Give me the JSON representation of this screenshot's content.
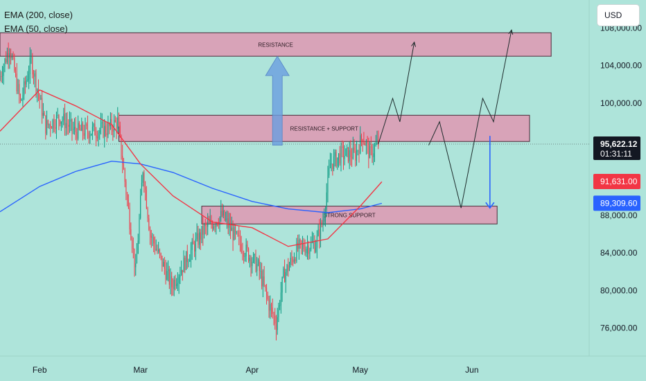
{
  "chart_data": {
    "type": "candlestick",
    "symbol_currency": "USD",
    "indicators": [
      {
        "name": "EMA (200, close)",
        "color": "#2962ff"
      },
      {
        "name": "EMA (50, close)",
        "color": "#f23645"
      }
    ],
    "y_axis": {
      "range": [
        73000,
        111000
      ],
      "ticks": [
        "108,000.00",
        "104,000.00",
        "100,000.00",
        "88,000.00",
        "84,000.00",
        "80,000.00",
        "76,000.00"
      ],
      "tick_values": [
        108000,
        104000,
        100000,
        88000,
        84000,
        80000,
        76000
      ]
    },
    "x_axis": {
      "range": [
        "2025-01-21",
        "2025-06-12"
      ],
      "labels": [
        "Feb",
        "Mar",
        "Apr",
        "May",
        "Jun"
      ],
      "label_dates": [
        "2025-02-01",
        "2025-03-01",
        "2025-04-01",
        "2025-05-01",
        "2025-06-01"
      ]
    },
    "price_labels": [
      {
        "text": "95,622.12",
        "sub": "01:31:11",
        "value": 95622.12,
        "color": "#131722"
      },
      {
        "text": "91,631.00",
        "value": 91631.0,
        "color": "#f23645"
      },
      {
        "text": "89,309.60",
        "value": 89309.6,
        "color": "#2962ff"
      }
    ],
    "zones": [
      {
        "label": "RESISTANCE",
        "low": 105000,
        "high": 107500,
        "from": "2025-01-21",
        "to": "2025-06-23"
      },
      {
        "label": "RESISTANCE + SUPPORT",
        "low": 95900,
        "high": 98700,
        "from": "2025-02-23",
        "to": "2025-06-17"
      },
      {
        "label": "STRONG SUPPORT",
        "low": 87100,
        "high": 89000,
        "from": "2025-03-18",
        "to": "2025-06-08"
      }
    ],
    "ema200": [
      {
        "date": "2025-01-21",
        "value": 88400
      },
      {
        "date": "2025-02-01",
        "value": 91100
      },
      {
        "date": "2025-02-11",
        "value": 92700
      },
      {
        "date": "2025-02-21",
        "value": 93800
      },
      {
        "date": "2025-03-01",
        "value": 93500
      },
      {
        "date": "2025-03-10",
        "value": 92600
      },
      {
        "date": "2025-03-21",
        "value": 90900
      },
      {
        "date": "2025-04-01",
        "value": 89500
      },
      {
        "date": "2025-04-11",
        "value": 88700
      },
      {
        "date": "2025-04-22",
        "value": 88300
      },
      {
        "date": "2025-05-01",
        "value": 88700
      },
      {
        "date": "2025-05-07",
        "value": 89300
      }
    ],
    "ema50": [
      {
        "date": "2025-01-21",
        "value": 97000
      },
      {
        "date": "2025-02-01",
        "value": 101400
      },
      {
        "date": "2025-02-11",
        "value": 99700
      },
      {
        "date": "2025-02-21",
        "value": 97700
      },
      {
        "date": "2025-03-01",
        "value": 93500
      },
      {
        "date": "2025-03-10",
        "value": 90100
      },
      {
        "date": "2025-03-21",
        "value": 87300
      },
      {
        "date": "2025-04-01",
        "value": 86700
      },
      {
        "date": "2025-04-11",
        "value": 84700
      },
      {
        "date": "2025-04-22",
        "value": 85500
      },
      {
        "date": "2025-05-01",
        "value": 89000
      },
      {
        "date": "2025-05-07",
        "value": 91600
      }
    ],
    "price_path": [
      {
        "date": "2025-01-21",
        "value": 102500
      },
      {
        "date": "2025-01-24",
        "value": 106000
      },
      {
        "date": "2025-01-27",
        "value": 100000
      },
      {
        "date": "2025-01-30",
        "value": 104500
      },
      {
        "date": "2025-02-03",
        "value": 97500
      },
      {
        "date": "2025-02-07",
        "value": 98500
      },
      {
        "date": "2025-02-11",
        "value": 97000
      },
      {
        "date": "2025-02-15",
        "value": 97000
      },
      {
        "date": "2025-02-20",
        "value": 97200
      },
      {
        "date": "2025-02-23",
        "value": 98000
      },
      {
        "date": "2025-02-26",
        "value": 88500
      },
      {
        "date": "2025-02-28",
        "value": 82000
      },
      {
        "date": "2025-03-02",
        "value": 93000
      },
      {
        "date": "2025-03-04",
        "value": 86000
      },
      {
        "date": "2025-03-10",
        "value": 80500
      },
      {
        "date": "2025-03-15",
        "value": 84000
      },
      {
        "date": "2025-03-19",
        "value": 86500
      },
      {
        "date": "2025-03-24",
        "value": 88000
      },
      {
        "date": "2025-03-28",
        "value": 85500
      },
      {
        "date": "2025-04-01",
        "value": 83500
      },
      {
        "date": "2025-04-03",
        "value": 82500
      },
      {
        "date": "2025-04-06",
        "value": 78500
      },
      {
        "date": "2025-04-08",
        "value": 76500
      },
      {
        "date": "2025-04-10",
        "value": 81500
      },
      {
        "date": "2025-04-14",
        "value": 84500
      },
      {
        "date": "2025-04-19",
        "value": 85000
      },
      {
        "date": "2025-04-21",
        "value": 87500
      },
      {
        "date": "2025-04-23",
        "value": 93500
      },
      {
        "date": "2025-04-26",
        "value": 94500
      },
      {
        "date": "2025-04-30",
        "value": 94500
      },
      {
        "date": "2025-05-02",
        "value": 96500
      },
      {
        "date": "2025-05-04",
        "value": 94500
      },
      {
        "date": "2025-05-06",
        "value": 95622
      }
    ],
    "projections": [
      {
        "points": [
          {
            "date": "2025-05-06",
            "value": 95622
          },
          {
            "date": "2025-05-10",
            "value": 100500
          },
          {
            "date": "2025-05-12",
            "value": 98000
          },
          {
            "date": "2025-05-16",
            "value": 106500
          }
        ]
      },
      {
        "points": [
          {
            "date": "2025-05-20",
            "value": 95500
          },
          {
            "date": "2025-05-23",
            "value": 98000
          },
          {
            "date": "2025-05-29",
            "value": 88800
          },
          {
            "date": "2025-06-04",
            "value": 100500
          },
          {
            "date": "2025-06-07",
            "value": 98000
          },
          {
            "date": "2025-06-12",
            "value": 107800
          }
        ]
      }
    ],
    "arrows": [
      {
        "direction": "up",
        "color": "#6a9ee0",
        "date": "2025-04-08",
        "from": 95500,
        "to": 105000
      },
      {
        "direction": "down",
        "color": "#2962ff",
        "date": "2025-06-06",
        "from": 96500,
        "to": 88800
      }
    ],
    "current_price_line": 95622.12
  }
}
